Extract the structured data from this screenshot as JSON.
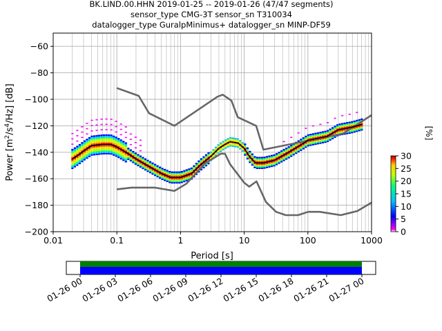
{
  "title_lines": [
    "BK.LIND.00.HHN   2019-01-25 -- 2019-01-26  (47/47 segments)",
    "sensor_type CMG-3T sensor_sn T310034",
    "datalogger_type GuralpMinimus+ datalogger_sn MINP-DF59"
  ],
  "colors": {
    "grid": "#b0b0b0",
    "noise_model": "#666666",
    "mode_curve": "#000000",
    "coverage_top": "#008000",
    "coverage_bottom": "#0000ff",
    "colormap": [
      "#ff00ff",
      "#0000ff",
      "#00c0ff",
      "#00ff80",
      "#c0ff00",
      "#ffd000",
      "#ff3000",
      "#b00000"
    ]
  },
  "chart_data": [
    {
      "type": "heatmap",
      "subtype": "probabilistic power spectral density",
      "xlabel": "Period [s]",
      "ylabel": "Power [m$^2$/s$^4$/Hz] [dB]",
      "xscale": "log",
      "xlim": [
        0.01,
        1000
      ],
      "ylim": [
        -200,
        -50
      ],
      "xticks": [
        0.01,
        0.1,
        1,
        10,
        100,
        1000
      ],
      "xtick_labels": [
        "0.01",
        "0.1",
        "1",
        "10",
        "100",
        "1000"
      ],
      "yticks": [
        -200,
        -180,
        -160,
        -140,
        -120,
        -100,
        -80,
        -60
      ],
      "ytick_labels": [
        "−200",
        "−180",
        "−160",
        "−140",
        "−120",
        "−100",
        "−80",
        "−60"
      ],
      "grid": true,
      "colorbar": {
        "label": "[%]",
        "range": [
          0,
          30
        ],
        "ticks": [
          0,
          5,
          10,
          15,
          20,
          25,
          30
        ]
      },
      "series": [
        {
          "name": "high noise model",
          "x": [
            0.1,
            0.22,
            0.32,
            0.8,
            3.8,
            4.6,
            6.3,
            7.9,
            15.4,
            20,
            354.8,
            1000
          ],
          "y": [
            -91.5,
            -97.4,
            -110.5,
            -120,
            -98,
            -96.5,
            -101,
            -113.5,
            -120,
            -138,
            -126,
            -112
          ]
        },
        {
          "name": "low noise model",
          "x": [
            0.1,
            0.17,
            0.4,
            0.8,
            1.24,
            2.4,
            4.3,
            5,
            6,
            10,
            12,
            15.6,
            21.9,
            31.6,
            45,
            70,
            101,
            154,
            328,
            600,
            1000
          ],
          "y": [
            -168,
            -166.7,
            -166.7,
            -169.2,
            -163.7,
            -148.6,
            -141.1,
            -141.1,
            -149,
            -163,
            -166,
            -162,
            -177.5,
            -185,
            -187.5,
            -187.5,
            -185,
            -185,
            -187.5,
            -184.4,
            -178
          ]
        },
        {
          "name": "mode",
          "x": [
            0.02,
            0.025,
            0.03,
            0.04,
            0.06,
            0.08,
            0.1,
            0.15,
            0.2,
            0.3,
            0.5,
            0.7,
            1,
            1.5,
            2,
            3,
            4,
            5,
            6,
            8,
            10,
            12,
            15,
            20,
            30,
            50,
            80,
            100,
            200,
            300,
            500,
            700
          ],
          "y": [
            -145,
            -142,
            -139,
            -135,
            -134,
            -134,
            -136,
            -141,
            -145,
            -150,
            -156,
            -159,
            -159,
            -156,
            -150,
            -143,
            -137,
            -134,
            -132,
            -133,
            -137,
            -143,
            -148,
            -148,
            -146,
            -140,
            -134,
            -131,
            -128,
            -123,
            -121,
            -119
          ]
        }
      ]
    },
    {
      "type": "timeline",
      "description_of_content": "data coverage bars",
      "xtick_labels": [
        "01-26 00",
        "01-26 03",
        "01-26 06",
        "01-26 09",
        "01-26 12",
        "01-26 15",
        "01-26 18",
        "01-26 21",
        "01-27 00"
      ],
      "bars": [
        {
          "label": "",
          "start": "01-26 00",
          "end": "01-27 00"
        },
        {
          "label": "",
          "start": "01-26 00",
          "end": "01-27 00"
        }
      ]
    }
  ]
}
